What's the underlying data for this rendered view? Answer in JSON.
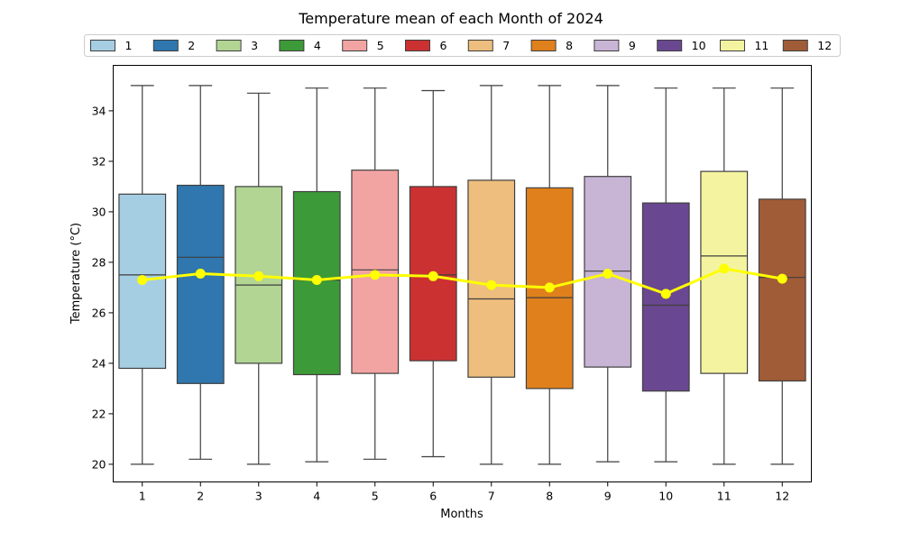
{
  "chart_data": {
    "type": "box",
    "title": "Temperature mean of each Month of 2024",
    "xlabel": "Months",
    "ylabel": "Temperature (°C)",
    "ylim": [
      19.3,
      35.8
    ],
    "yticks": [
      20,
      22,
      24,
      26,
      28,
      30,
      32,
      34
    ],
    "grid": false,
    "legend_position": "top",
    "categories": [
      "1",
      "2",
      "3",
      "4",
      "5",
      "6",
      "7",
      "8",
      "9",
      "10",
      "11",
      "12"
    ],
    "boxes": [
      {
        "category": "1",
        "min": 20.0,
        "q1": 23.8,
        "median": 27.5,
        "q3": 30.7,
        "max": 35.0,
        "mean": 27.3,
        "color": "#a6cee3"
      },
      {
        "category": "2",
        "min": 20.2,
        "q1": 23.2,
        "median": 28.2,
        "q3": 31.05,
        "max": 35.0,
        "mean": 27.55,
        "color": "#2f77ae"
      },
      {
        "category": "3",
        "min": 20.0,
        "q1": 24.0,
        "median": 27.1,
        "q3": 31.0,
        "max": 34.7,
        "mean": 27.45,
        "color": "#b2d594"
      },
      {
        "category": "4",
        "min": 20.1,
        "q1": 23.55,
        "median": 27.3,
        "q3": 30.8,
        "max": 34.9,
        "mean": 27.3,
        "color": "#3d9a38"
      },
      {
        "category": "5",
        "min": 20.2,
        "q1": 23.6,
        "median": 27.7,
        "q3": 31.65,
        "max": 34.9,
        "mean": 27.5,
        "color": "#f2a4a3"
      },
      {
        "category": "6",
        "min": 20.3,
        "q1": 24.1,
        "median": 27.5,
        "q3": 31.0,
        "max": 34.8,
        "mean": 27.45,
        "color": "#cc3132"
      },
      {
        "category": "7",
        "min": 20.0,
        "q1": 23.45,
        "median": 26.55,
        "q3": 31.25,
        "max": 35.0,
        "mean": 27.1,
        "color": "#eebe7e"
      },
      {
        "category": "8",
        "min": 20.0,
        "q1": 23.0,
        "median": 26.6,
        "q3": 30.95,
        "max": 35.0,
        "mean": 27.0,
        "color": "#e0801c"
      },
      {
        "category": "9",
        "min": 20.1,
        "q1": 23.85,
        "median": 27.65,
        "q3": 31.4,
        "max": 35.0,
        "mean": 27.55,
        "color": "#c8b4d5"
      },
      {
        "category": "10",
        "min": 20.1,
        "q1": 22.9,
        "median": 26.3,
        "q3": 30.35,
        "max": 34.9,
        "mean": 26.75,
        "color": "#6a4891"
      },
      {
        "category": "11",
        "min": 20.0,
        "q1": 23.6,
        "median": 28.25,
        "q3": 31.6,
        "max": 34.9,
        "mean": 27.75,
        "color": "#f4f4a0"
      },
      {
        "category": "12",
        "min": 20.0,
        "q1": 23.3,
        "median": 27.4,
        "q3": 30.5,
        "max": 34.9,
        "mean": 27.35,
        "color": "#a05c37"
      }
    ],
    "mean_line_color": "#ffff00",
    "legend": [
      "1",
      "2",
      "3",
      "4",
      "5",
      "6",
      "7",
      "8",
      "9",
      "10",
      "11",
      "12"
    ]
  }
}
